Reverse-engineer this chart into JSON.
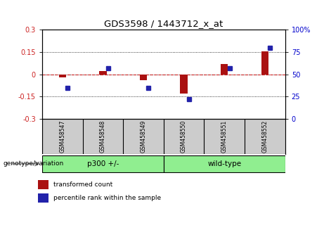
{
  "title": "GDS3598 / 1443712_x_at",
  "samples": [
    "GSM458547",
    "GSM458548",
    "GSM458549",
    "GSM458550",
    "GSM458551",
    "GSM458552"
  ],
  "transformed_count": [
    -0.02,
    0.02,
    -0.04,
    -0.13,
    0.07,
    0.155
  ],
  "percentile_rank": [
    35,
    57,
    35,
    22,
    57,
    80
  ],
  "ylim_left": [
    -0.3,
    0.3
  ],
  "ylim_right": [
    0,
    100
  ],
  "yticks_left": [
    -0.3,
    -0.15,
    0,
    0.15,
    0.3
  ],
  "yticks_right": [
    0,
    25,
    50,
    75,
    100
  ],
  "bar_color_red": "#aa1111",
  "bar_color_blue": "#2222aa",
  "group_label": "genotype/variation",
  "legend_red": "transformed count",
  "legend_blue": "percentile rank within the sample",
  "hline_color": "#cc2222",
  "dotted_line_color": "#000000",
  "bg_color": "#ffffff",
  "plot_bg": "#ffffff",
  "tick_label_fontsize": 7,
  "bar_width": 0.18,
  "sample_label_bg": "#cccccc",
  "group_spans": [
    {
      "label": "p300 +/-",
      "start": 0,
      "end": 2,
      "color": "#90ee90"
    },
    {
      "label": "wild-type",
      "start": 3,
      "end": 5,
      "color": "#90ee90"
    }
  ]
}
